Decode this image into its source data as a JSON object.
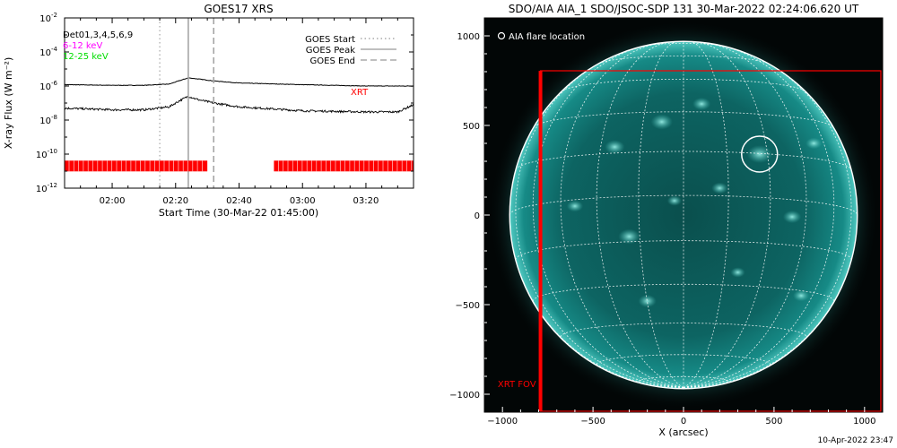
{
  "chart_data": [
    {
      "type": "line",
      "title": "GOES17 XRS",
      "xlabel": "Start Time (30-Mar-22 01:45:00)",
      "ylabel": "X-ray Flux (W m⁻²)",
      "y_scale": "log",
      "ylim": [
        1e-12,
        0.01
      ],
      "xlim": [
        "01:45",
        "03:35"
      ],
      "y_ticks": [
        {
          "value": 0.01,
          "label_base": "10",
          "label_exp": "-2"
        },
        {
          "value": 0.0001,
          "label_base": "10",
          "label_exp": "-4"
        },
        {
          "value": 1e-06,
          "label_base": "10",
          "label_exp": "-6"
        },
        {
          "value": 1e-08,
          "label_base": "10",
          "label_exp": "-8"
        },
        {
          "value": 1e-10,
          "label_base": "10",
          "label_exp": "-10"
        },
        {
          "value": 1e-12,
          "label_base": "10",
          "label_exp": "-12"
        }
      ],
      "x_ticks": [
        "02:00",
        "02:20",
        "02:40",
        "03:00",
        "03:20"
      ],
      "det_label": "Det01,3,4,5,6,9",
      "band_labels": [
        {
          "text": "6-12 keV",
          "color": "#ff00ff"
        },
        {
          "text": "12-25 keV",
          "color": "#00dd00"
        }
      ],
      "legend": [
        {
          "name": "GOES Start",
          "style": "dotted",
          "color": "#999999"
        },
        {
          "name": "GOES Peak",
          "style": "solid",
          "color": "#999999"
        },
        {
          "name": "GOES End",
          "style": "dashed",
          "color": "#999999"
        }
      ],
      "markers": {
        "start": "02:15",
        "peak": "02:24",
        "end": "02:32"
      },
      "series": [
        {
          "name": "",
          "color": "#000000",
          "x": [
            "01:45",
            "02:00",
            "02:10",
            "02:18",
            "02:21",
            "02:24",
            "02:27",
            "02:32",
            "02:40",
            "03:00",
            "03:20",
            "03:35"
          ],
          "y": [
            1.2e-06,
            1.1e-06,
            1.1e-06,
            1.3e-06,
            2e-06,
            3e-06,
            2.6e-06,
            2e-06,
            1.5e-06,
            1.2e-06,
            1e-06,
            1e-06
          ]
        },
        {
          "name": "",
          "color": "#000000",
          "x": [
            "01:45",
            "02:00",
            "02:10",
            "02:18",
            "02:21",
            "02:24",
            "02:27",
            "02:32",
            "02:40",
            "03:00",
            "03:20",
            "03:30",
            "03:35"
          ],
          "y": [
            5e-08,
            4e-08,
            4e-08,
            6e-08,
            1.3e-07,
            2.5e-07,
            1.6e-07,
            1e-07,
            6e-08,
            3.5e-08,
            3e-08,
            3e-08,
            8e-08
          ]
        }
      ],
      "xrt_label": {
        "text": "XRT",
        "color": "#ff0000"
      },
      "xrt_coverage": {
        "y": 2e-11,
        "color": "#ff0000",
        "segments": [
          [
            "01:45",
            "02:30"
          ],
          [
            "02:51",
            "03:35"
          ]
        ]
      }
    },
    {
      "type": "image",
      "title": "SDO/AIA AIA_1 SDO/JSOC-SDP 131 30-Mar-2022 02:24:06.620 UT",
      "xlabel": "X (arcsec)",
      "xlim": [
        -1100,
        1100
      ],
      "ylim": [
        -1100,
        1100
      ],
      "x_ticks": [
        -1000,
        -500,
        0,
        500,
        1000
      ],
      "y_ticks": [
        -1000,
        -500,
        0,
        500,
        1000
      ],
      "solar_radius_arcsec": 960,
      "flare_location": {
        "x": 420,
        "y": 340,
        "label": "AIA flare location"
      },
      "xrt_fov": {
        "x1": -790,
        "x2": 1090,
        "y1": -1095,
        "y2": 805,
        "label": "XRT FOV",
        "color": "#ff0000"
      },
      "colors": {
        "disk": "#0f7f7a",
        "background": "#020606",
        "grid": "#ffffff"
      }
    }
  ],
  "footer_timestamp": "10-Apr-2022 23:47"
}
